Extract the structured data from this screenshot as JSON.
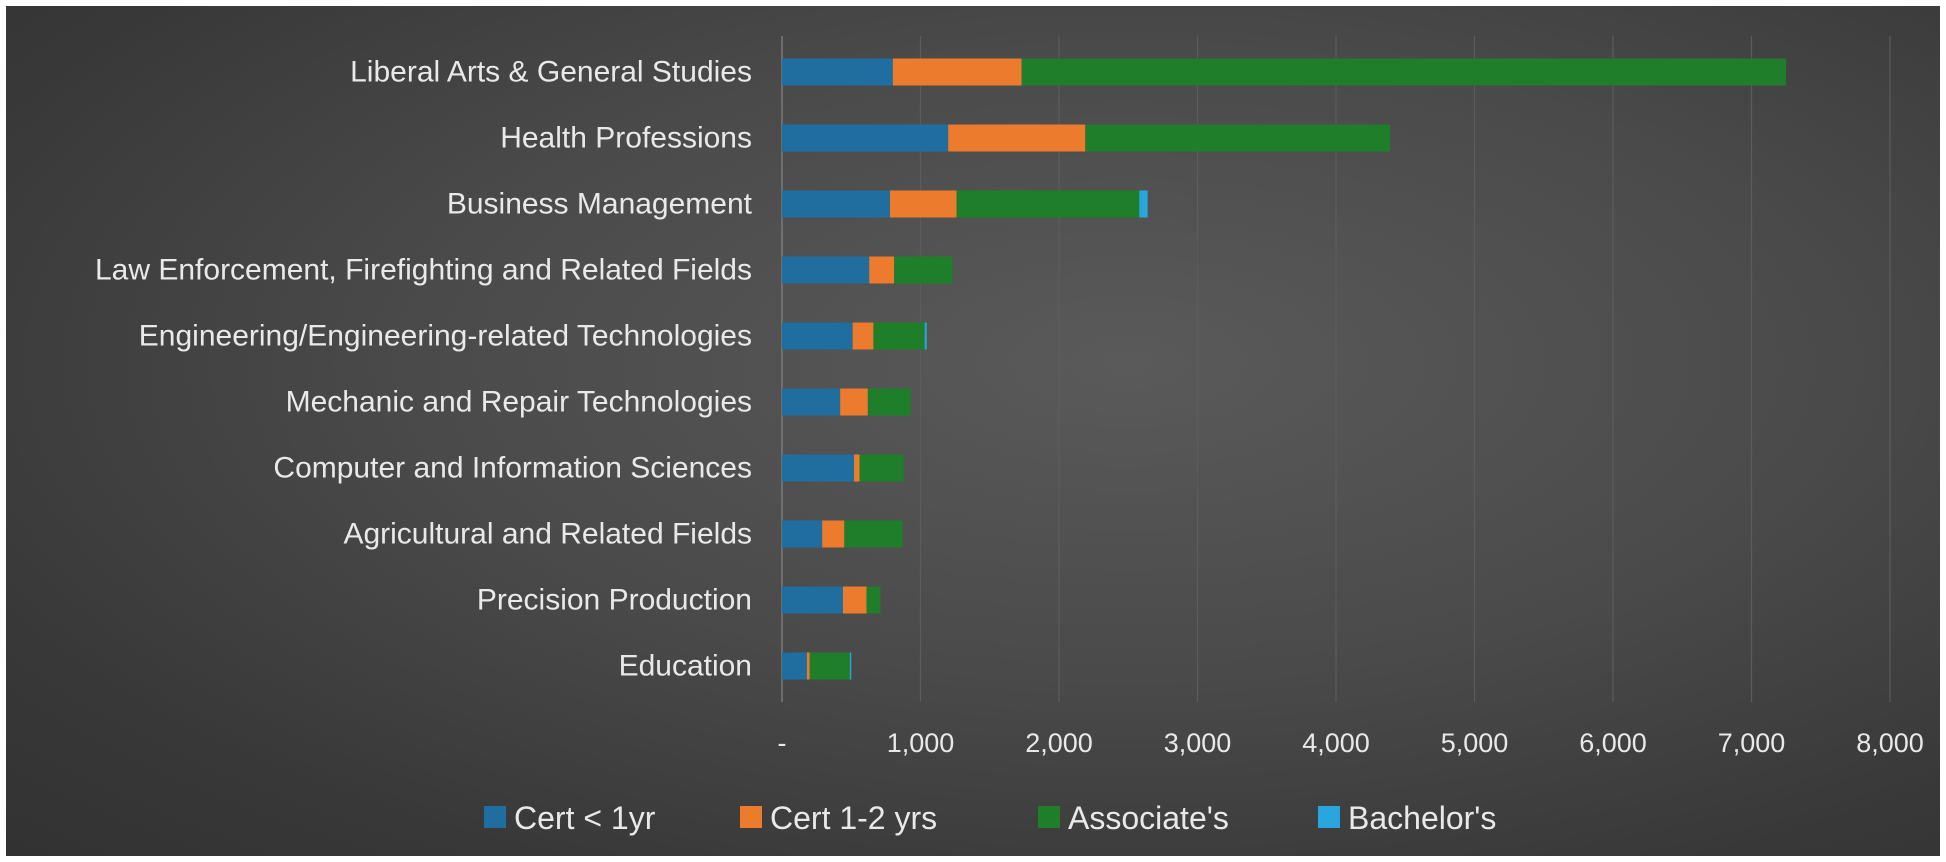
{
  "chart_data": {
    "type": "bar",
    "orientation": "horizontal",
    "stacked": true,
    "title": "",
    "xlabel": "",
    "ylabel": "",
    "xlim": [
      0,
      8000
    ],
    "x_ticks": [
      "-",
      "1,000",
      "2,000",
      "3,000",
      "4,000",
      "5,000",
      "6,000",
      "7,000",
      "8,000"
    ],
    "x_tick_values": [
      0,
      1000,
      2000,
      3000,
      4000,
      5000,
      6000,
      7000,
      8000
    ],
    "grid": "vertical",
    "legend_position": "bottom",
    "categories": [
      "Liberal Arts & General Studies",
      "Health Professions",
      "Business Management",
      "Law Enforcement, Firefighting and Related Fields",
      "Engineering/Engineering-related Technologies",
      "Mechanic and Repair Technologies",
      "Computer and Information Sciences",
      "Agricultural and Related Fields",
      "Precision Production",
      "Education"
    ],
    "series": [
      {
        "name": "Cert < 1yr",
        "color": "#1f6e9f",
        "values": [
          800,
          1200,
          780,
          630,
          510,
          420,
          520,
          290,
          440,
          180
        ]
      },
      {
        "name": "Cert 1-2 yrs",
        "color": "#ec7b2e",
        "values": [
          930,
          990,
          480,
          180,
          150,
          200,
          40,
          160,
          170,
          20
        ]
      },
      {
        "name": "Associate's",
        "color": "#1e7e29",
        "values": [
          5520,
          2200,
          1320,
          420,
          370,
          310,
          320,
          420,
          100,
          290
        ]
      },
      {
        "name": "Bachelor's",
        "color": "#2aa6df",
        "values": [
          0,
          0,
          60,
          0,
          15,
          0,
          0,
          0,
          0,
          10
        ]
      }
    ]
  }
}
